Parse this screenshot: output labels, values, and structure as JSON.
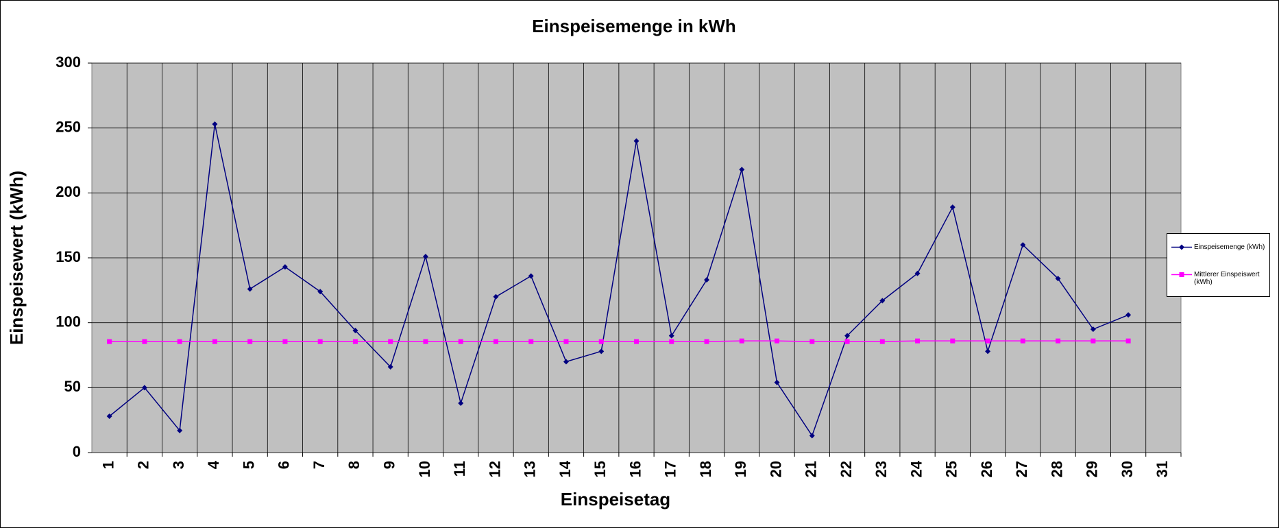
{
  "chart_data": {
    "type": "line",
    "title": "Einspeisemenge in kWh",
    "x_label": "Einspeisetag",
    "y_label": "Einspeisewert  (kWh)",
    "categories": [
      "1",
      "2",
      "3",
      "4",
      "5",
      "6",
      "7",
      "8",
      "9",
      "10",
      "11",
      "12",
      "13",
      "14",
      "15",
      "16",
      "17",
      "18",
      "19",
      "20",
      "21",
      "22",
      "23",
      "24",
      "25",
      "26",
      "27",
      "28",
      "29",
      "30",
      "31"
    ],
    "series": [
      {
        "name": "Einspeisemenge (kWh)",
        "color": "#000080",
        "marker": "diamond",
        "values": [
          28,
          50,
          17,
          253,
          126,
          143,
          124,
          94,
          66,
          151,
          38,
          120,
          136,
          70,
          78,
          240,
          90,
          133,
          218,
          54,
          13,
          90,
          117,
          138,
          189,
          78,
          160,
          134,
          95,
          106,
          null
        ]
      },
      {
        "name": "Mittlerer Einspeiswert (kWh)",
        "color": "#ff00ff",
        "marker": "square",
        "values": [
          85.5,
          85.5,
          85.5,
          85.5,
          85.5,
          85.5,
          85.5,
          85.5,
          85.5,
          85.5,
          85.5,
          85.5,
          85.5,
          85.5,
          85.5,
          85.5,
          85.5,
          85.5,
          86,
          86,
          85.5,
          85.5,
          85.5,
          86,
          86,
          86,
          86,
          86,
          86,
          86,
          null
        ]
      }
    ],
    "ylim": [
      0,
      300
    ],
    "yticks": [
      0,
      50,
      100,
      150,
      200,
      250,
      300
    ],
    "grid": true,
    "legend": "right"
  }
}
